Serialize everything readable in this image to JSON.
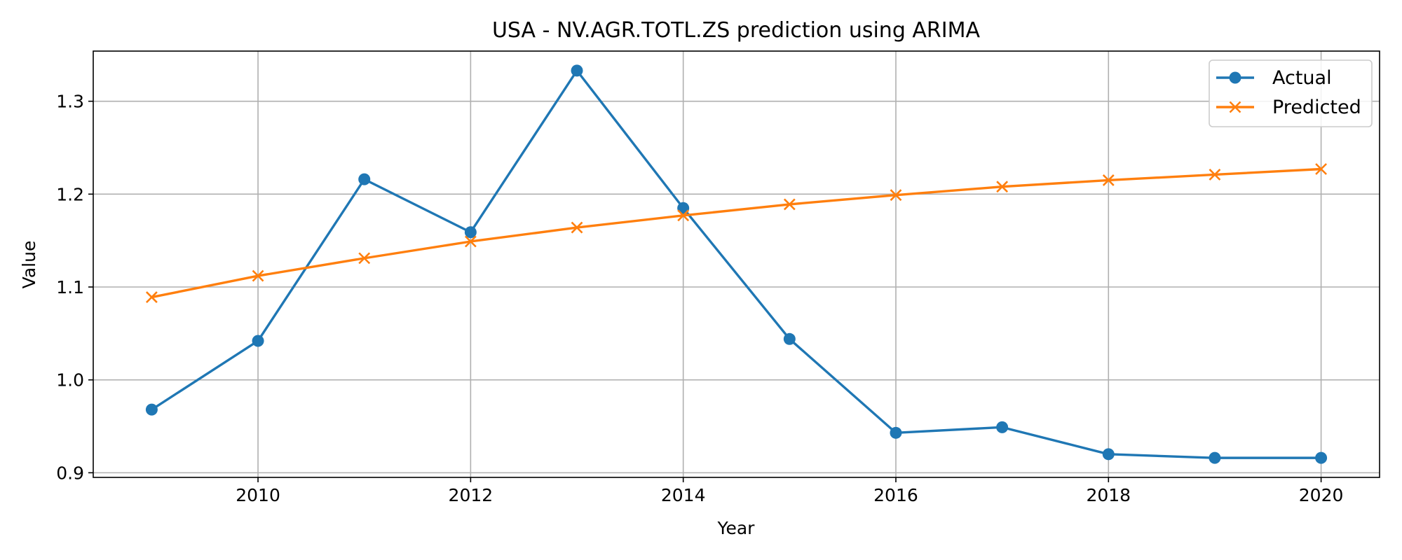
{
  "chart_data": {
    "type": "line",
    "title": "USA - NV.AGR.TOTL.ZS prediction using ARIMA",
    "xlabel": "Year",
    "ylabel": "Value",
    "x": [
      2009,
      2010,
      2011,
      2012,
      2013,
      2014,
      2015,
      2016,
      2017,
      2018,
      2019,
      2020
    ],
    "xlim": [
      2008.45,
      2020.55
    ],
    "ylim": [
      0.895,
      1.354
    ],
    "xticks": [
      "2010",
      "2012",
      "2014",
      "2016",
      "2018",
      "2020"
    ],
    "yticks": [
      "0.9",
      "1.0",
      "1.1",
      "1.2",
      "1.3"
    ],
    "grid": true,
    "legend_position": "top-right",
    "series": [
      {
        "name": "Actual",
        "color": "#1f77b4",
        "marker": "circle",
        "values": [
          0.968,
          1.042,
          1.216,
          1.159,
          1.333,
          1.185,
          1.044,
          0.943,
          0.949,
          0.92,
          0.916,
          0.916
        ]
      },
      {
        "name": "Predicted",
        "color": "#ff7f0e",
        "marker": "x",
        "values": [
          1.089,
          1.112,
          1.131,
          1.149,
          1.164,
          1.177,
          1.189,
          1.199,
          1.208,
          1.215,
          1.221,
          1.227
        ]
      }
    ]
  }
}
